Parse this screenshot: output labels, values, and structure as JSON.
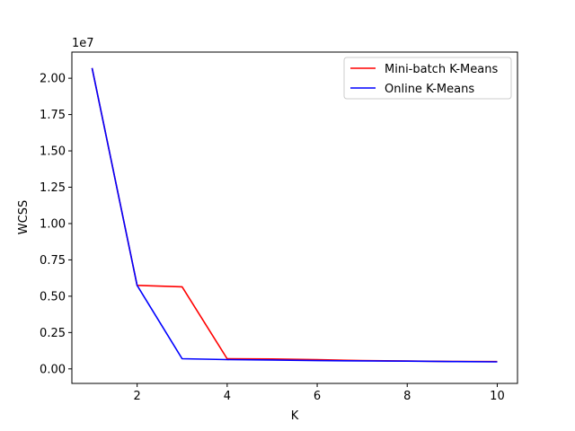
{
  "chart_data": {
    "type": "line",
    "xlabel": "K",
    "ylabel": "WCSS",
    "y_offset_text": "1e7",
    "xlim": [
      0.55,
      10.45
    ],
    "ylim": [
      -0.1,
      2.18
    ],
    "x_ticks": [
      2,
      4,
      6,
      8,
      10
    ],
    "x_tick_labels": [
      "2",
      "4",
      "6",
      "8",
      "10"
    ],
    "y_ticks": [
      0.0,
      0.25,
      0.5,
      0.75,
      1.0,
      1.25,
      1.5,
      1.75,
      2.0
    ],
    "y_tick_labels": [
      "0.00",
      "0.25",
      "0.50",
      "0.75",
      "1.00",
      "1.25",
      "1.50",
      "1.75",
      "2.00"
    ],
    "grid": false,
    "legend_position": "top-right",
    "x": [
      1,
      2,
      3,
      4,
      5,
      6,
      7,
      8,
      9,
      10
    ],
    "series": [
      {
        "name": "Mini-batch K-Means",
        "color": "#ff0000",
        "values": [
          2.07,
          0.575,
          0.565,
          0.07,
          0.068,
          0.063,
          0.057,
          0.054,
          0.051,
          0.05
        ]
      },
      {
        "name": "Online K-Means",
        "color": "#0000ff",
        "values": [
          2.07,
          0.575,
          0.07,
          0.064,
          0.061,
          0.057,
          0.055,
          0.053,
          0.05,
          0.048
        ]
      }
    ]
  }
}
